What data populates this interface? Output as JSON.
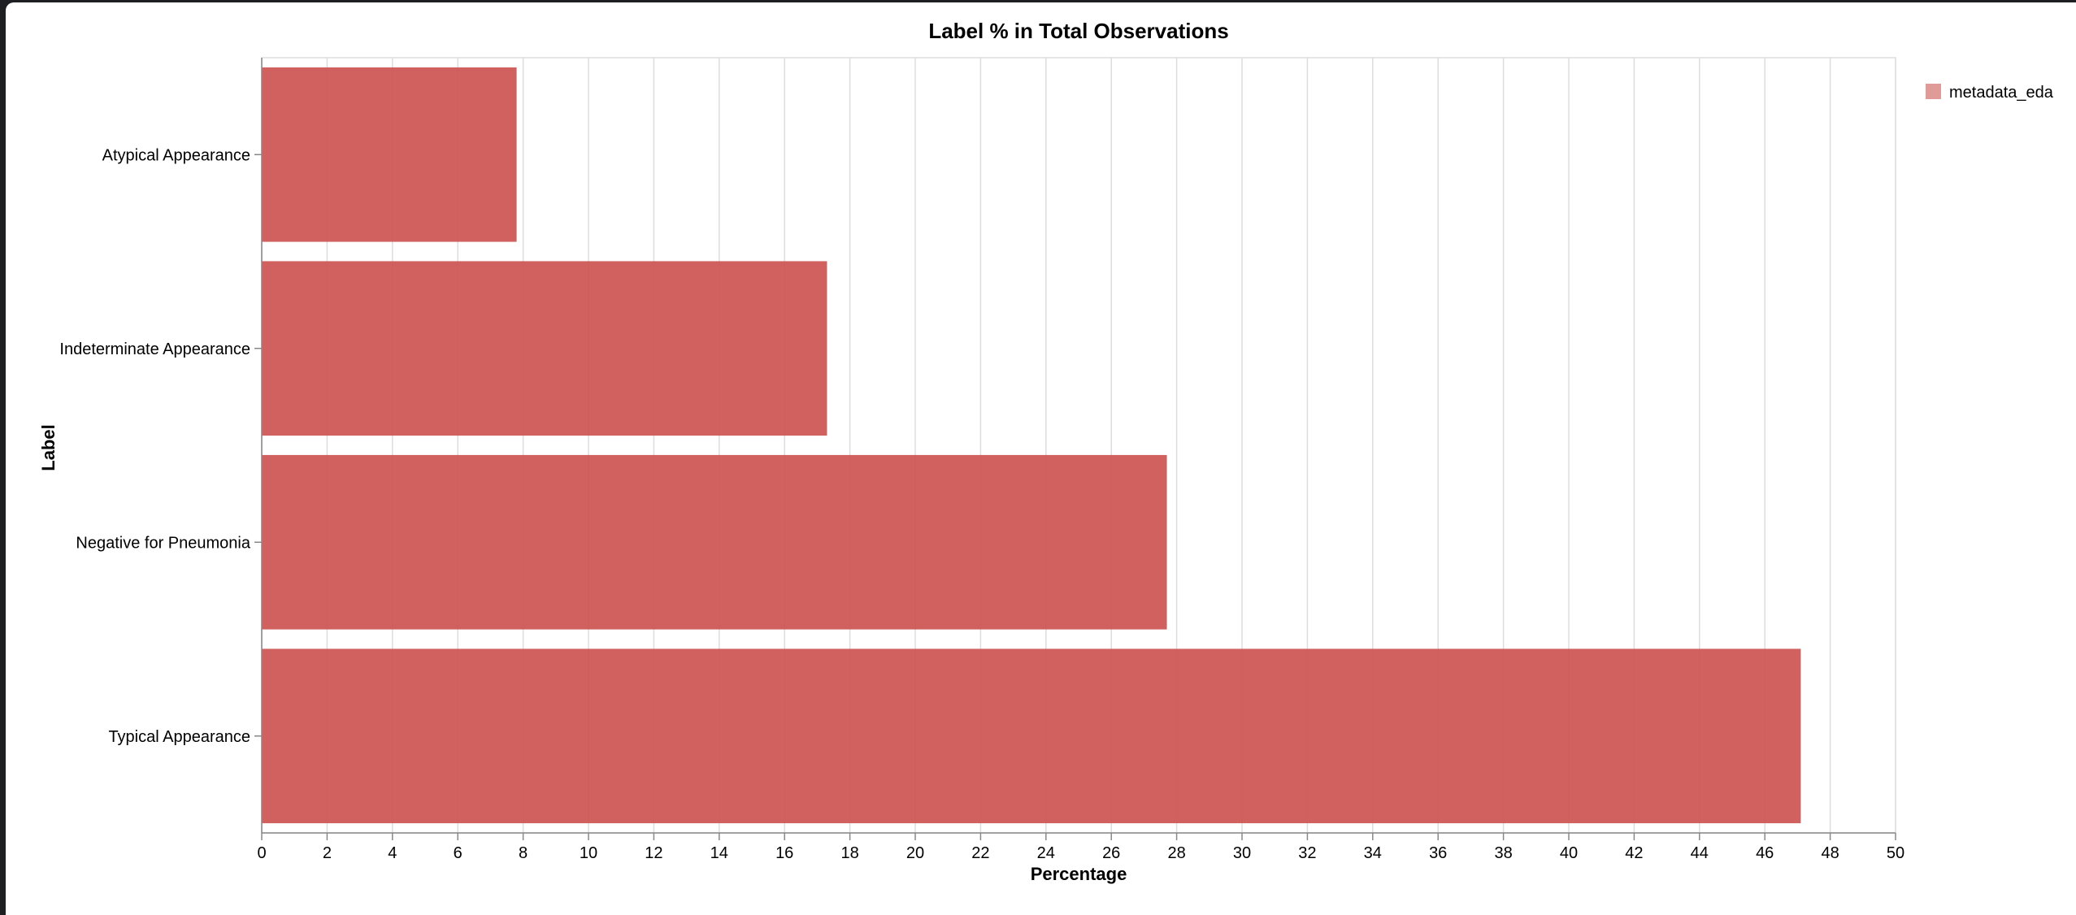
{
  "chart_data": {
    "type": "bar",
    "orientation": "horizontal",
    "title": "Label % in Total Observations",
    "xlabel": "Percentage",
    "ylabel": "Label",
    "categories": [
      "Atypical Appearance",
      "Indeterminate Appearance",
      "Negative for Pneumonia",
      "Typical Appearance"
    ],
    "series": [
      {
        "name": "metadata_eda",
        "values": [
          7.8,
          17.3,
          27.7,
          47.1
        ],
        "color": "#cc5450"
      }
    ],
    "xlim": [
      0,
      50
    ],
    "xticks": [
      0,
      2,
      4,
      6,
      8,
      10,
      12,
      14,
      16,
      18,
      20,
      22,
      24,
      26,
      28,
      30,
      32,
      34,
      36,
      38,
      40,
      42,
      44,
      46,
      48,
      50
    ],
    "grid": "vertical",
    "legend": "top-right",
    "legend_swatch_color": "#e09a98",
    "gridline_color": "#dddddd"
  }
}
